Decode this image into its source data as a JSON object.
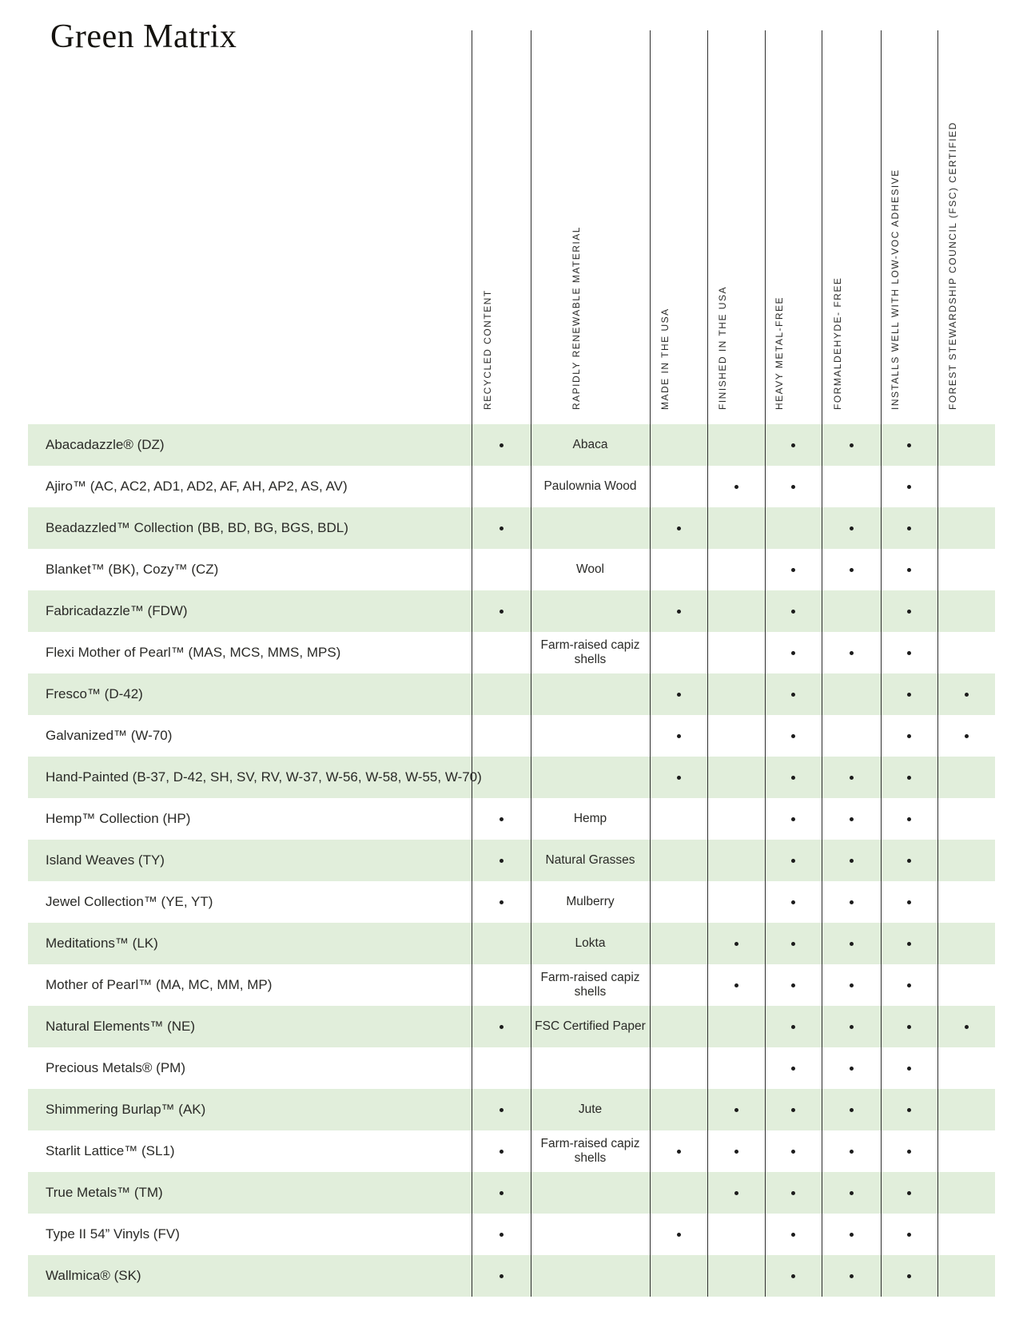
{
  "title": "Green Matrix",
  "colors": {
    "row_highlight": "#e1eedb",
    "grid_line": "#2f2f2f",
    "text": "#262624",
    "dot": "#1c1c1c"
  },
  "table": {
    "dot_glyph": "•",
    "columns": [
      {
        "id": "recycled_content",
        "label": "RECYCLED CONTENT",
        "kind": "dot"
      },
      {
        "id": "rapidly_renewable_material",
        "label": "RAPIDLY RENEWABLE MATERIAL",
        "kind": "text"
      },
      {
        "id": "made_in_the_usa",
        "label": "MADE IN THE USA",
        "kind": "dot"
      },
      {
        "id": "finished_in_the_usa",
        "label": "FINISHED IN THE USA",
        "kind": "dot"
      },
      {
        "id": "heavy_metal_free",
        "label": "HEAVY METAL-FREE",
        "kind": "dot"
      },
      {
        "id": "formaldehyde_free",
        "label": "FORMALDEHYDE- FREE",
        "kind": "dot"
      },
      {
        "id": "low_voc_adhesive",
        "label": "INSTALLS WELL WITH LOW-VOC ADHESIVE",
        "kind": "dot"
      },
      {
        "id": "fsc_certified",
        "label": "FOREST STEWARDSHIP COUNCIL (FSC) CERTIFIED",
        "kind": "dot"
      }
    ],
    "rows": [
      {
        "label": "Abacadazzle® (DZ)",
        "rapidly_renewable_material": "Abaca",
        "marks": [
          "recycled_content",
          "heavy_metal_free",
          "formaldehyde_free",
          "low_voc_adhesive"
        ]
      },
      {
        "label": "Ajiro™ (AC, AC2, AD1, AD2, AF, AH, AP2, AS, AV)",
        "rapidly_renewable_material": "Paulownia Wood",
        "marks": [
          "finished_in_the_usa",
          "heavy_metal_free",
          "low_voc_adhesive"
        ]
      },
      {
        "label": "Beadazzled™ Collection (BB, BD, BG, BGS, BDL)",
        "rapidly_renewable_material": "",
        "marks": [
          "recycled_content",
          "made_in_the_usa",
          "formaldehyde_free",
          "low_voc_adhesive"
        ]
      },
      {
        "label": "Blanket™ (BK), Cozy™ (CZ)",
        "rapidly_renewable_material": "Wool",
        "marks": [
          "heavy_metal_free",
          "formaldehyde_free",
          "low_voc_adhesive"
        ]
      },
      {
        "label": "Fabricadazzle™ (FDW)",
        "rapidly_renewable_material": "",
        "marks": [
          "recycled_content",
          "made_in_the_usa",
          "heavy_metal_free",
          "low_voc_adhesive"
        ]
      },
      {
        "label": "Flexi Mother of Pearl™ (MAS, MCS, MMS, MPS)",
        "rapidly_renewable_material": "Farm-raised capiz shells",
        "marks": [
          "heavy_metal_free",
          "formaldehyde_free",
          "low_voc_adhesive"
        ]
      },
      {
        "label": "Fresco™ (D-42)",
        "rapidly_renewable_material": "",
        "marks": [
          "made_in_the_usa",
          "heavy_metal_free",
          "low_voc_adhesive",
          "fsc_certified"
        ]
      },
      {
        "label": "Galvanized™ (W-70)",
        "rapidly_renewable_material": "",
        "marks": [
          "made_in_the_usa",
          "heavy_metal_free",
          "low_voc_adhesive",
          "fsc_certified"
        ]
      },
      {
        "label": "Hand-Painted (B-37, D-42, SH, SV, RV, W-37, W-56, W-58, W-55, W-70)",
        "rapidly_renewable_material": "",
        "marks": [
          "made_in_the_usa",
          "heavy_metal_free",
          "formaldehyde_free",
          "low_voc_adhesive"
        ]
      },
      {
        "label": "Hemp™ Collection (HP)",
        "rapidly_renewable_material": "Hemp",
        "marks": [
          "recycled_content",
          "heavy_metal_free",
          "formaldehyde_free",
          "low_voc_adhesive"
        ]
      },
      {
        "label": "Island Weaves (TY)",
        "rapidly_renewable_material": "Natural Grasses",
        "marks": [
          "recycled_content",
          "heavy_metal_free",
          "formaldehyde_free",
          "low_voc_adhesive"
        ]
      },
      {
        "label": "Jewel Collection™ (YE, YT)",
        "rapidly_renewable_material": "Mulberry",
        "marks": [
          "recycled_content",
          "heavy_metal_free",
          "formaldehyde_free",
          "low_voc_adhesive"
        ]
      },
      {
        "label": "Meditations™ (LK)",
        "rapidly_renewable_material": "Lokta",
        "marks": [
          "finished_in_the_usa",
          "heavy_metal_free",
          "formaldehyde_free",
          "low_voc_adhesive"
        ]
      },
      {
        "label": "Mother of Pearl™ (MA, MC, MM, MP)",
        "rapidly_renewable_material": "Farm-raised capiz shells",
        "marks": [
          "finished_in_the_usa",
          "heavy_metal_free",
          "formaldehyde_free",
          "low_voc_adhesive"
        ]
      },
      {
        "label": "Natural Elements™ (NE)",
        "rapidly_renewable_material": "FSC Certified Paper",
        "marks": [
          "recycled_content",
          "heavy_metal_free",
          "formaldehyde_free",
          "low_voc_adhesive",
          "fsc_certified"
        ]
      },
      {
        "label": "Precious Metals® (PM)",
        "rapidly_renewable_material": "",
        "marks": [
          "heavy_metal_free",
          "formaldehyde_free",
          "low_voc_adhesive"
        ]
      },
      {
        "label": "Shimmering Burlap™ (AK)",
        "rapidly_renewable_material": "Jute",
        "marks": [
          "recycled_content",
          "finished_in_the_usa",
          "heavy_metal_free",
          "formaldehyde_free",
          "low_voc_adhesive"
        ]
      },
      {
        "label": "Starlit Lattice™ (SL1)",
        "rapidly_renewable_material": "Farm-raised capiz shells",
        "marks": [
          "recycled_content",
          "made_in_the_usa",
          "finished_in_the_usa",
          "heavy_metal_free",
          "formaldehyde_free",
          "low_voc_adhesive"
        ]
      },
      {
        "label": "True Metals™ (TM)",
        "rapidly_renewable_material": "",
        "marks": [
          "recycled_content",
          "finished_in_the_usa",
          "heavy_metal_free",
          "formaldehyde_free",
          "low_voc_adhesive"
        ]
      },
      {
        "label": "Type II 54” Vinyls (FV)",
        "rapidly_renewable_material": "",
        "marks": [
          "recycled_content",
          "made_in_the_usa",
          "heavy_metal_free",
          "formaldehyde_free",
          "low_voc_adhesive"
        ]
      },
      {
        "label": "Wallmica® (SK)",
        "rapidly_renewable_material": "",
        "marks": [
          "recycled_content",
          "heavy_metal_free",
          "formaldehyde_free",
          "low_voc_adhesive"
        ]
      }
    ]
  }
}
